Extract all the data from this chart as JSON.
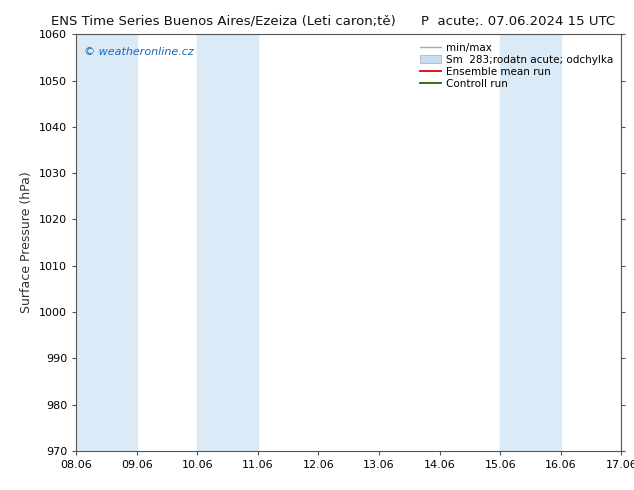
{
  "title": "ENS Time Series Buenos Aires/Ezeiza (Leti caron;tě)         P  acute;. 07.06.2024 15 UTC",
  "title_left": "ENS Time Series Buenos Aires/Ezeiza (Leti caron;tě)",
  "title_right": "P  acute;. 07.06.2024 15 UTC",
  "ylabel": "Surface Pressure (hPa)",
  "ylim": [
    970,
    1060
  ],
  "yticks": [
    970,
    980,
    990,
    1000,
    1010,
    1020,
    1030,
    1040,
    1050,
    1060
  ],
  "xtick_labels": [
    "08.06",
    "09.06",
    "10.06",
    "11.06",
    "12.06",
    "13.06",
    "14.06",
    "15.06",
    "16.06",
    "17.06"
  ],
  "band_color": "#daeaf7",
  "bg_color": "#ffffff",
  "watermark": "© weatheronline.cz",
  "watermark_color": "#1a6ab5",
  "spine_color": "#555555",
  "tick_color": "#555555",
  "title_fontsize": 9.5,
  "axis_label_fontsize": 9,
  "tick_fontsize": 8,
  "legend_fontsize": 7.5,
  "minmax_color": "#aaaaaa",
  "fill_color": "#c8ddf0",
  "ens_color": "#dd0000",
  "ctrl_color": "#226600"
}
